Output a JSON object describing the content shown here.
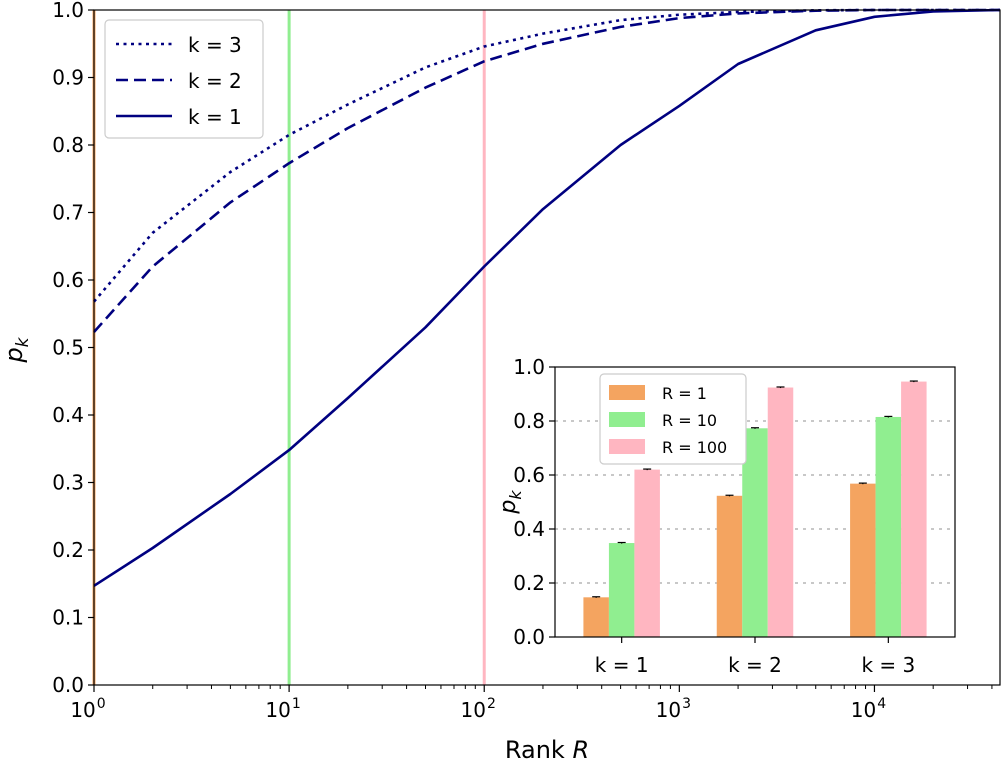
{
  "chart_data": [
    {
      "type": "line",
      "xlabel": "Rank",
      "xlabel_var": "R",
      "ylabel": "p",
      "ylabel_sub": "k",
      "xscale": "log",
      "xlim": [
        1,
        44000
      ],
      "ylim": [
        0,
        1
      ],
      "x_ticks": [
        {
          "base": "10",
          "exp": "0",
          "value": 1
        },
        {
          "base": "10",
          "exp": "1",
          "value": 10
        },
        {
          "base": "10",
          "exp": "2",
          "value": 100
        },
        {
          "base": "10",
          "exp": "3",
          "value": 1000
        },
        {
          "base": "10",
          "exp": "4",
          "value": 10000
        }
      ],
      "y_ticks": [
        "0.0",
        "0.1",
        "0.2",
        "0.3",
        "0.4",
        "0.5",
        "0.6",
        "0.7",
        "0.8",
        "0.9",
        "1.0"
      ],
      "grid": false,
      "legend_position": "top-left",
      "vertical_lines": [
        {
          "x": 1,
          "color": "#f4a460"
        },
        {
          "x": 10,
          "color": "#90ee90"
        },
        {
          "x": 100,
          "color": "#ffb6c1"
        }
      ],
      "series": [
        {
          "name": "k = 3",
          "style": "dotted",
          "color": "#000080",
          "x": [
            1,
            2,
            5,
            10,
            20,
            50,
            100,
            200,
            500,
            1000,
            2000,
            5000,
            10000,
            20000,
            44000
          ],
          "y": [
            0.568,
            0.67,
            0.76,
            0.815,
            0.86,
            0.915,
            0.946,
            0.965,
            0.985,
            0.993,
            0.997,
            0.9995,
            1.0,
            1.0,
            1.0
          ]
        },
        {
          "name": "k = 2",
          "style": "dashed",
          "color": "#000080",
          "x": [
            1,
            2,
            5,
            10,
            20,
            50,
            100,
            200,
            500,
            1000,
            2000,
            5000,
            10000,
            20000,
            44000
          ],
          "y": [
            0.523,
            0.62,
            0.715,
            0.773,
            0.825,
            0.885,
            0.924,
            0.95,
            0.975,
            0.988,
            0.995,
            0.999,
            1.0,
            1.0,
            1.0
          ]
        },
        {
          "name": "k = 1",
          "style": "solid",
          "color": "#000080",
          "x": [
            1,
            2,
            5,
            10,
            20,
            50,
            100,
            200,
            500,
            1000,
            2000,
            5000,
            10000,
            20000,
            44000
          ],
          "y": [
            0.147,
            0.203,
            0.283,
            0.348,
            0.425,
            0.53,
            0.62,
            0.705,
            0.8,
            0.858,
            0.92,
            0.97,
            0.99,
            0.998,
            1.0
          ]
        }
      ]
    },
    {
      "type": "bar",
      "categories": [
        "k = 1",
        "k = 2",
        "k = 3"
      ],
      "ylabel": "p",
      "ylabel_sub": "k",
      "ylim": [
        0,
        1
      ],
      "y_ticks": [
        "0.0",
        "0.2",
        "0.4",
        "0.6",
        "0.8",
        "1.0"
      ],
      "grid": "horizontal dotted",
      "legend_position": "top-left",
      "series": [
        {
          "name": "R = 1",
          "color": "#f4a460",
          "values": [
            0.147,
            0.523,
            0.568
          ],
          "errors": [
            0.002,
            0.002,
            0.002
          ]
        },
        {
          "name": "R = 10",
          "color": "#90ee90",
          "values": [
            0.348,
            0.773,
            0.815
          ],
          "errors": [
            0.002,
            0.002,
            0.002
          ]
        },
        {
          "name": "R = 100",
          "color": "#ffb6c1",
          "values": [
            0.62,
            0.924,
            0.946
          ],
          "errors": [
            0.002,
            0.002,
            0.002
          ]
        }
      ]
    }
  ]
}
